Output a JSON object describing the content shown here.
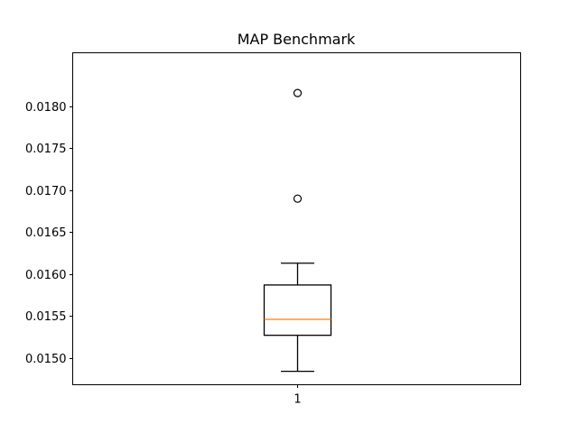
{
  "chart_data": {
    "type": "box",
    "title": "MAP Benchmark",
    "xlabel": "",
    "ylabel": "",
    "categories": [
      "1"
    ],
    "ylim": [
      0.01468,
      0.01864
    ],
    "yticks": [
      0.015,
      0.0155,
      0.016,
      0.0165,
      0.017,
      0.0175,
      0.018
    ],
    "ytick_labels": [
      "0.0150",
      "0.0155",
      "0.0160",
      "0.0165",
      "0.0170",
      "0.0175",
      "0.0180"
    ],
    "boxes": [
      {
        "category": "1",
        "whisker_low": 0.01484,
        "q1": 0.01527,
        "median": 0.01546,
        "q3": 0.01587,
        "whisker_high": 0.01613,
        "outliers": [
          0.0169,
          0.01816
        ]
      }
    ],
    "grid": false,
    "colors": {
      "box": "#000000",
      "median": "#ff7f0e",
      "outlier_edge": "#000000"
    }
  }
}
